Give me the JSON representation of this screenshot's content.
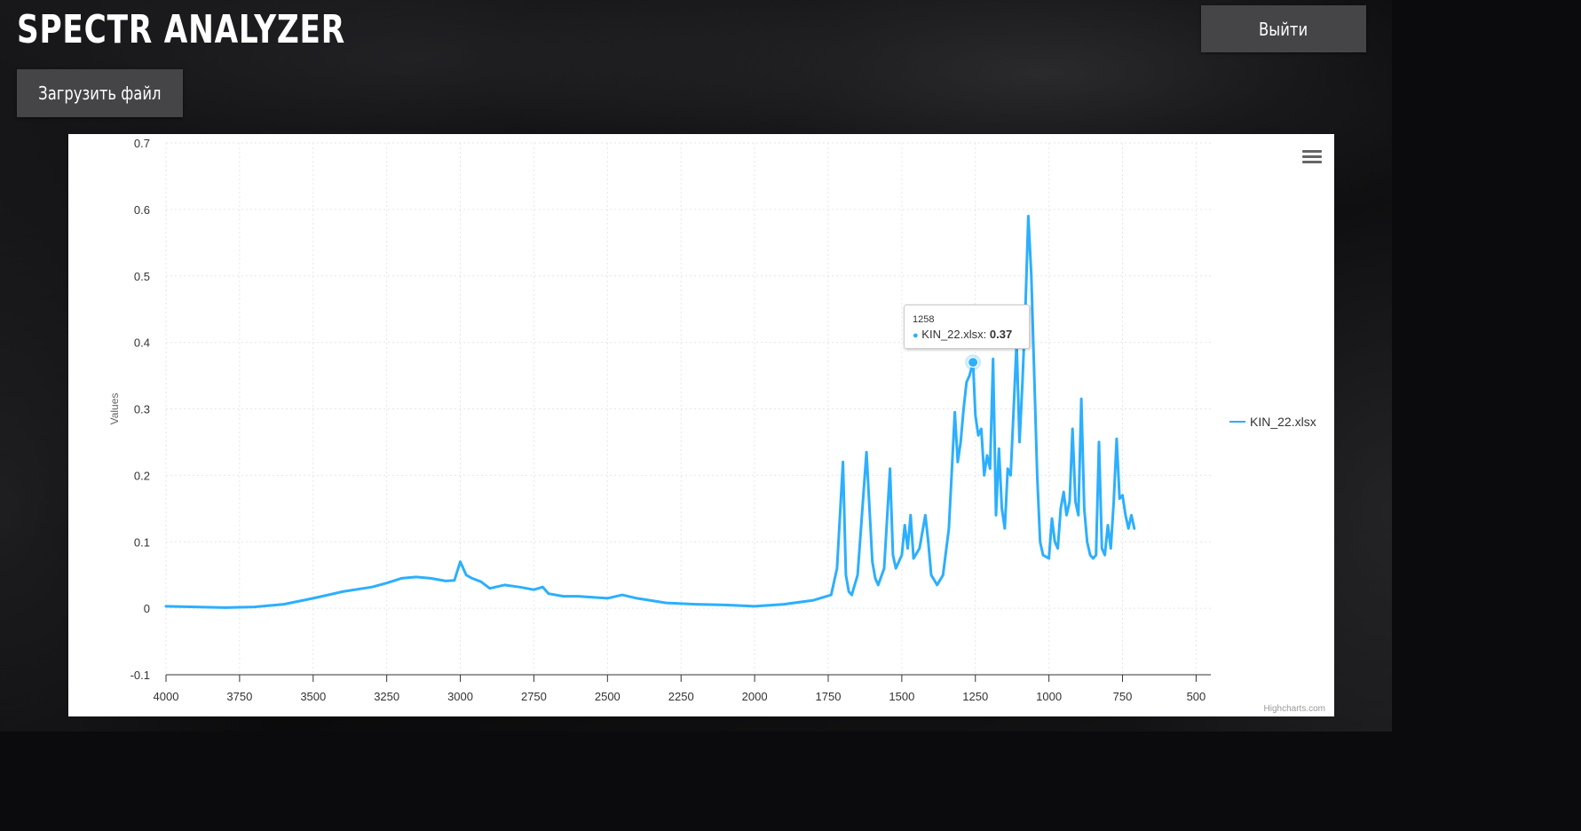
{
  "app": {
    "title": "SPECTR ANALYZER",
    "logout_label": "Выйти",
    "upload_label": "Загрузить файл"
  },
  "chart_data": {
    "type": "line",
    "xlabel": "",
    "ylabel": "Values",
    "xlim": [
      4000,
      450
    ],
    "x_reversed": true,
    "ylim": [
      -0.1,
      0.7
    ],
    "x_ticks": [
      4000,
      3750,
      3500,
      3250,
      3000,
      2750,
      2500,
      2250,
      2000,
      1750,
      1500,
      1250,
      1000,
      750,
      500
    ],
    "y_ticks": [
      -0.1,
      0,
      0.1,
      0.2,
      0.3,
      0.4,
      0.5,
      0.6,
      0.7
    ],
    "grid": true,
    "legend_position": "right",
    "series": [
      {
        "name": "KIN_22.xlsx",
        "color": "#2caffe",
        "points": [
          [
            4000,
            0.003
          ],
          [
            3900,
            0.002
          ],
          [
            3800,
            0.001
          ],
          [
            3700,
            0.002
          ],
          [
            3600,
            0.006
          ],
          [
            3500,
            0.015
          ],
          [
            3400,
            0.025
          ],
          [
            3300,
            0.032
          ],
          [
            3250,
            0.038
          ],
          [
            3200,
            0.045
          ],
          [
            3150,
            0.047
          ],
          [
            3100,
            0.045
          ],
          [
            3050,
            0.041
          ],
          [
            3020,
            0.042
          ],
          [
            3000,
            0.07
          ],
          [
            2980,
            0.05
          ],
          [
            2960,
            0.045
          ],
          [
            2930,
            0.04
          ],
          [
            2900,
            0.03
          ],
          [
            2850,
            0.035
          ],
          [
            2800,
            0.032
          ],
          [
            2750,
            0.028
          ],
          [
            2720,
            0.032
          ],
          [
            2700,
            0.022
          ],
          [
            2650,
            0.018
          ],
          [
            2600,
            0.018
          ],
          [
            2500,
            0.015
          ],
          [
            2450,
            0.02
          ],
          [
            2400,
            0.015
          ],
          [
            2300,
            0.008
          ],
          [
            2200,
            0.006
          ],
          [
            2100,
            0.005
          ],
          [
            2000,
            0.003
          ],
          [
            1900,
            0.006
          ],
          [
            1800,
            0.012
          ],
          [
            1740,
            0.02
          ],
          [
            1720,
            0.06
          ],
          [
            1700,
            0.22
          ],
          [
            1690,
            0.05
          ],
          [
            1680,
            0.025
          ],
          [
            1670,
            0.02
          ],
          [
            1650,
            0.05
          ],
          [
            1620,
            0.235
          ],
          [
            1600,
            0.07
          ],
          [
            1590,
            0.045
          ],
          [
            1580,
            0.035
          ],
          [
            1560,
            0.06
          ],
          [
            1540,
            0.21
          ],
          [
            1530,
            0.08
          ],
          [
            1520,
            0.06
          ],
          [
            1500,
            0.08
          ],
          [
            1490,
            0.125
          ],
          [
            1480,
            0.09
          ],
          [
            1470,
            0.14
          ],
          [
            1460,
            0.075
          ],
          [
            1440,
            0.09
          ],
          [
            1420,
            0.14
          ],
          [
            1410,
            0.1
          ],
          [
            1400,
            0.05
          ],
          [
            1380,
            0.035
          ],
          [
            1360,
            0.05
          ],
          [
            1340,
            0.12
          ],
          [
            1320,
            0.295
          ],
          [
            1310,
            0.22
          ],
          [
            1300,
            0.25
          ],
          [
            1290,
            0.3
          ],
          [
            1280,
            0.34
          ],
          [
            1270,
            0.35
          ],
          [
            1258,
            0.37
          ],
          [
            1250,
            0.29
          ],
          [
            1240,
            0.26
          ],
          [
            1230,
            0.27
          ],
          [
            1220,
            0.2
          ],
          [
            1210,
            0.23
          ],
          [
            1200,
            0.21
          ],
          [
            1190,
            0.375
          ],
          [
            1180,
            0.14
          ],
          [
            1170,
            0.24
          ],
          [
            1160,
            0.15
          ],
          [
            1150,
            0.12
          ],
          [
            1140,
            0.21
          ],
          [
            1130,
            0.2
          ],
          [
            1120,
            0.3
          ],
          [
            1110,
            0.4
          ],
          [
            1100,
            0.25
          ],
          [
            1090,
            0.34
          ],
          [
            1080,
            0.45
          ],
          [
            1070,
            0.59
          ],
          [
            1060,
            0.5
          ],
          [
            1050,
            0.35
          ],
          [
            1040,
            0.2
          ],
          [
            1030,
            0.1
          ],
          [
            1020,
            0.08
          ],
          [
            1000,
            0.075
          ],
          [
            990,
            0.135
          ],
          [
            980,
            0.1
          ],
          [
            970,
            0.09
          ],
          [
            960,
            0.15
          ],
          [
            950,
            0.175
          ],
          [
            940,
            0.14
          ],
          [
            930,
            0.16
          ],
          [
            920,
            0.27
          ],
          [
            910,
            0.16
          ],
          [
            900,
            0.14
          ],
          [
            890,
            0.315
          ],
          [
            880,
            0.15
          ],
          [
            870,
            0.1
          ],
          [
            860,
            0.08
          ],
          [
            850,
            0.075
          ],
          [
            840,
            0.08
          ],
          [
            830,
            0.25
          ],
          [
            820,
            0.09
          ],
          [
            810,
            0.08
          ],
          [
            800,
            0.125
          ],
          [
            790,
            0.09
          ],
          [
            780,
            0.16
          ],
          [
            770,
            0.255
          ],
          [
            760,
            0.165
          ],
          [
            750,
            0.17
          ],
          [
            740,
            0.14
          ],
          [
            730,
            0.12
          ],
          [
            720,
            0.14
          ],
          [
            710,
            0.12
          ]
        ]
      }
    ],
    "tooltip": {
      "x": "1258",
      "series": "KIN_22.xlsx",
      "value": "0.37"
    },
    "credits": "Highcharts.com"
  }
}
